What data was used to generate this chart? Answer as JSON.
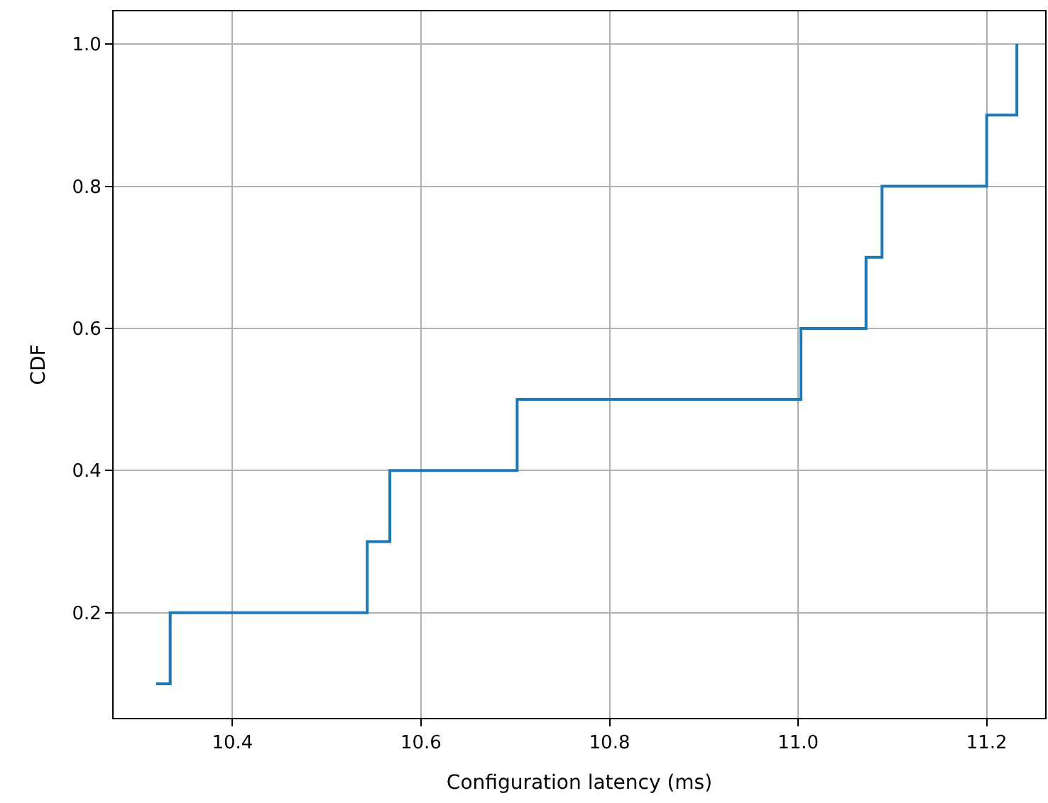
{
  "chart_data": {
    "type": "step",
    "xlabel": "Configuration latency (ms)",
    "ylabel": "CDF",
    "x": [
      10.319,
      10.334,
      10.543,
      10.567,
      10.702,
      11.003,
      11.072,
      11.089,
      11.2,
      11.232
    ],
    "series": [
      {
        "color": "#1f77b4",
        "values": [
          0.1,
          0.2,
          0.3,
          0.4,
          0.5,
          0.6,
          0.7,
          0.8,
          0.9,
          1.0
        ]
      }
    ],
    "xlim": [
      10.274,
      11.262
    ],
    "ylim": [
      0.052,
      1.046
    ],
    "xticks": [
      10.4,
      10.6,
      10.8,
      {
        "value": 11,
        "label": "11.0"
      },
      11.2
    ],
    "yticks": [
      0.2,
      0.4,
      0.6,
      0.8,
      {
        "value": 1,
        "label": "1.0"
      }
    ],
    "grid": true
  }
}
